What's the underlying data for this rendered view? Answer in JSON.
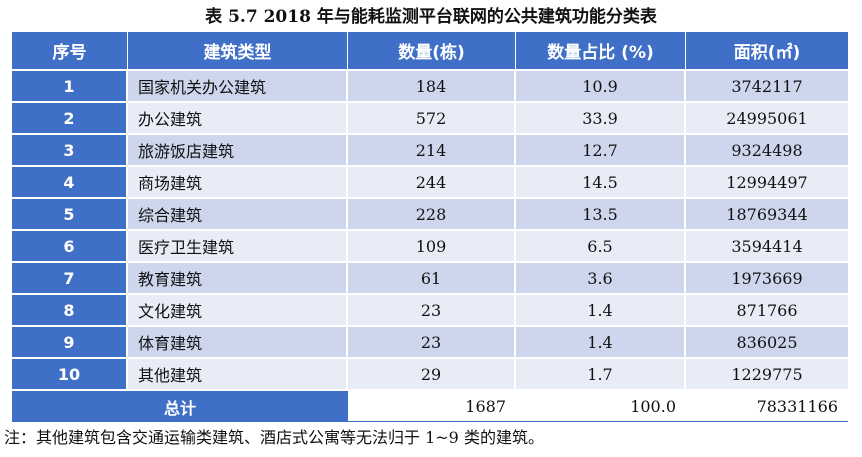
{
  "title": "表 5.7 2018 年与能耗监测平台联网的公共建筑功能分类表",
  "headers": [
    "序号",
    "建筑类型",
    "数量(栋)",
    "数量占比 (%)",
    "面积(㎡)"
  ],
  "rows": [
    {
      "seq": "1",
      "type": "国家机关办公建筑",
      "count": "184",
      "share": "10.9",
      "area": "3742117"
    },
    {
      "seq": "2",
      "type": "办公建筑",
      "count": "572",
      "share": "33.9",
      "area": "24995061"
    },
    {
      "seq": "3",
      "type": "旅游饭店建筑",
      "count": "214",
      "share": "12.7",
      "area": "9324498"
    },
    {
      "seq": "4",
      "type": "商场建筑",
      "count": "244",
      "share": "14.5",
      "area": "12994497"
    },
    {
      "seq": "5",
      "type": "综合建筑",
      "count": "228",
      "share": "13.5",
      "area": "18769344"
    },
    {
      "seq": "6",
      "type": "医疗卫生建筑",
      "count": "109",
      "share": "6.5",
      "area": "3594414"
    },
    {
      "seq": "7",
      "type": "教育建筑",
      "count": "61",
      "share": "3.6",
      "area": "1973669"
    },
    {
      "seq": "8",
      "type": "文化建筑",
      "count": "23",
      "share": "1.4",
      "area": "871766"
    },
    {
      "seq": "9",
      "type": "体育建筑",
      "count": "23",
      "share": "1.4",
      "area": "836025"
    },
    {
      "seq": "10",
      "type": "其他建筑",
      "count": "29",
      "share": "1.7",
      "area": "1229775"
    }
  ],
  "total": {
    "label": "总计",
    "count": "1687",
    "share": "100.0",
    "area": "78331166"
  },
  "note": "注：其他建筑包含交通运输类建筑、酒店式公寓等无法归于 1~9 类的建筑。",
  "colors": {
    "header_bg": "#3f6fc6",
    "row_odd": "#cdd6ec",
    "row_even": "#e8ecf6"
  }
}
